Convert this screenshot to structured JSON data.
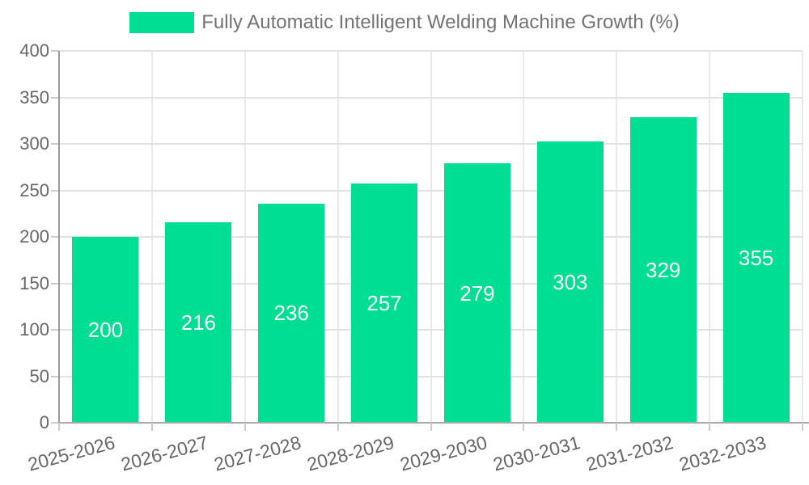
{
  "chart_data": {
    "type": "bar",
    "title": "Fully Automatic Intelligent Welding Machine Growth (%)",
    "series_name": "Fully Automatic Intelligent Welding Machine Growth (%)",
    "categories": [
      "2025-2026",
      "2026-2027",
      "2027-2028",
      "2028-2029",
      "2029-2030",
      "2030-2031",
      "2031-2032",
      "2032-2033"
    ],
    "values": [
      200,
      216,
      236,
      257,
      279,
      303,
      329,
      355
    ],
    "xlabel": "",
    "ylabel": "",
    "ylim": [
      0,
      400
    ],
    "yticks": [
      0,
      50,
      100,
      150,
      200,
      250,
      300,
      350,
      400
    ],
    "grid": true,
    "legend_position": "top",
    "bar_labels_shown": true
  },
  "legend": {
    "label": "Fully Automatic Intelligent Welding Machine Growth (%)",
    "swatch_color": "#00de94"
  },
  "colors": {
    "bar": "#00de94",
    "bar_label": "#ffffff",
    "grid_h": "#e2e2e2",
    "grid_v": "#e9e9e9",
    "axis_y": "#999999",
    "axis_x": "#aaaaaa",
    "tick": "#cccccc",
    "tick_text": "#666666",
    "legend_text": "#737373",
    "background": "#ffffff"
  }
}
